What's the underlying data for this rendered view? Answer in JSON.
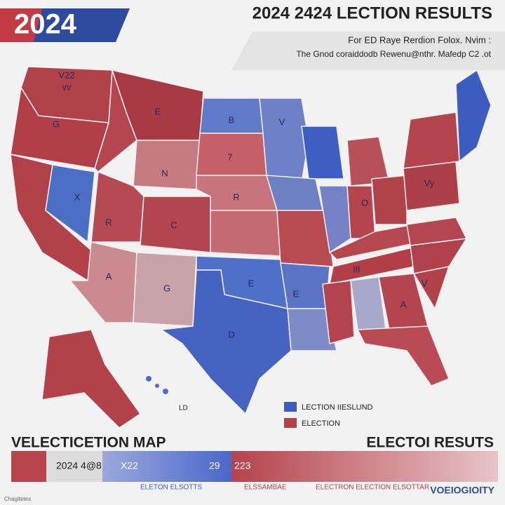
{
  "header": {
    "logo": "2024",
    "title": "2024 2424 LECTION RESULTS",
    "subtitle_lines": [
      "For ED Raye Rerdion Folox. Nvim :",
      "The Gnod coraiddodb Rewenu@nthr. Mafedp C2 .ot"
    ]
  },
  "map": {
    "state_labels": [
      "V22",
      "vv",
      "G",
      "E",
      "N",
      "X",
      "R",
      "C",
      "A",
      "G",
      "B",
      "7",
      "V",
      "R",
      "E",
      "D",
      "E",
      "O",
      "Vy",
      "A",
      "IIl",
      "V",
      "LD"
    ]
  },
  "legend": [
    "LECTION IIESLUND",
    "ELECTION"
  ],
  "footer": {
    "left_title": "VELECTICETION MAP",
    "right_title": "ELECTOI RESUTS",
    "bar_labels": [
      "2024 4@8",
      "X22",
      "29",
      "223"
    ],
    "sub_labels": [
      "ELETON ELSOTTS",
      "ELSSAMBAE",
      "ELECTRON ELECTION ELSOTTAR"
    ],
    "brand": "VOEIOGIOITY",
    "credit": "Chagitetes"
  }
}
